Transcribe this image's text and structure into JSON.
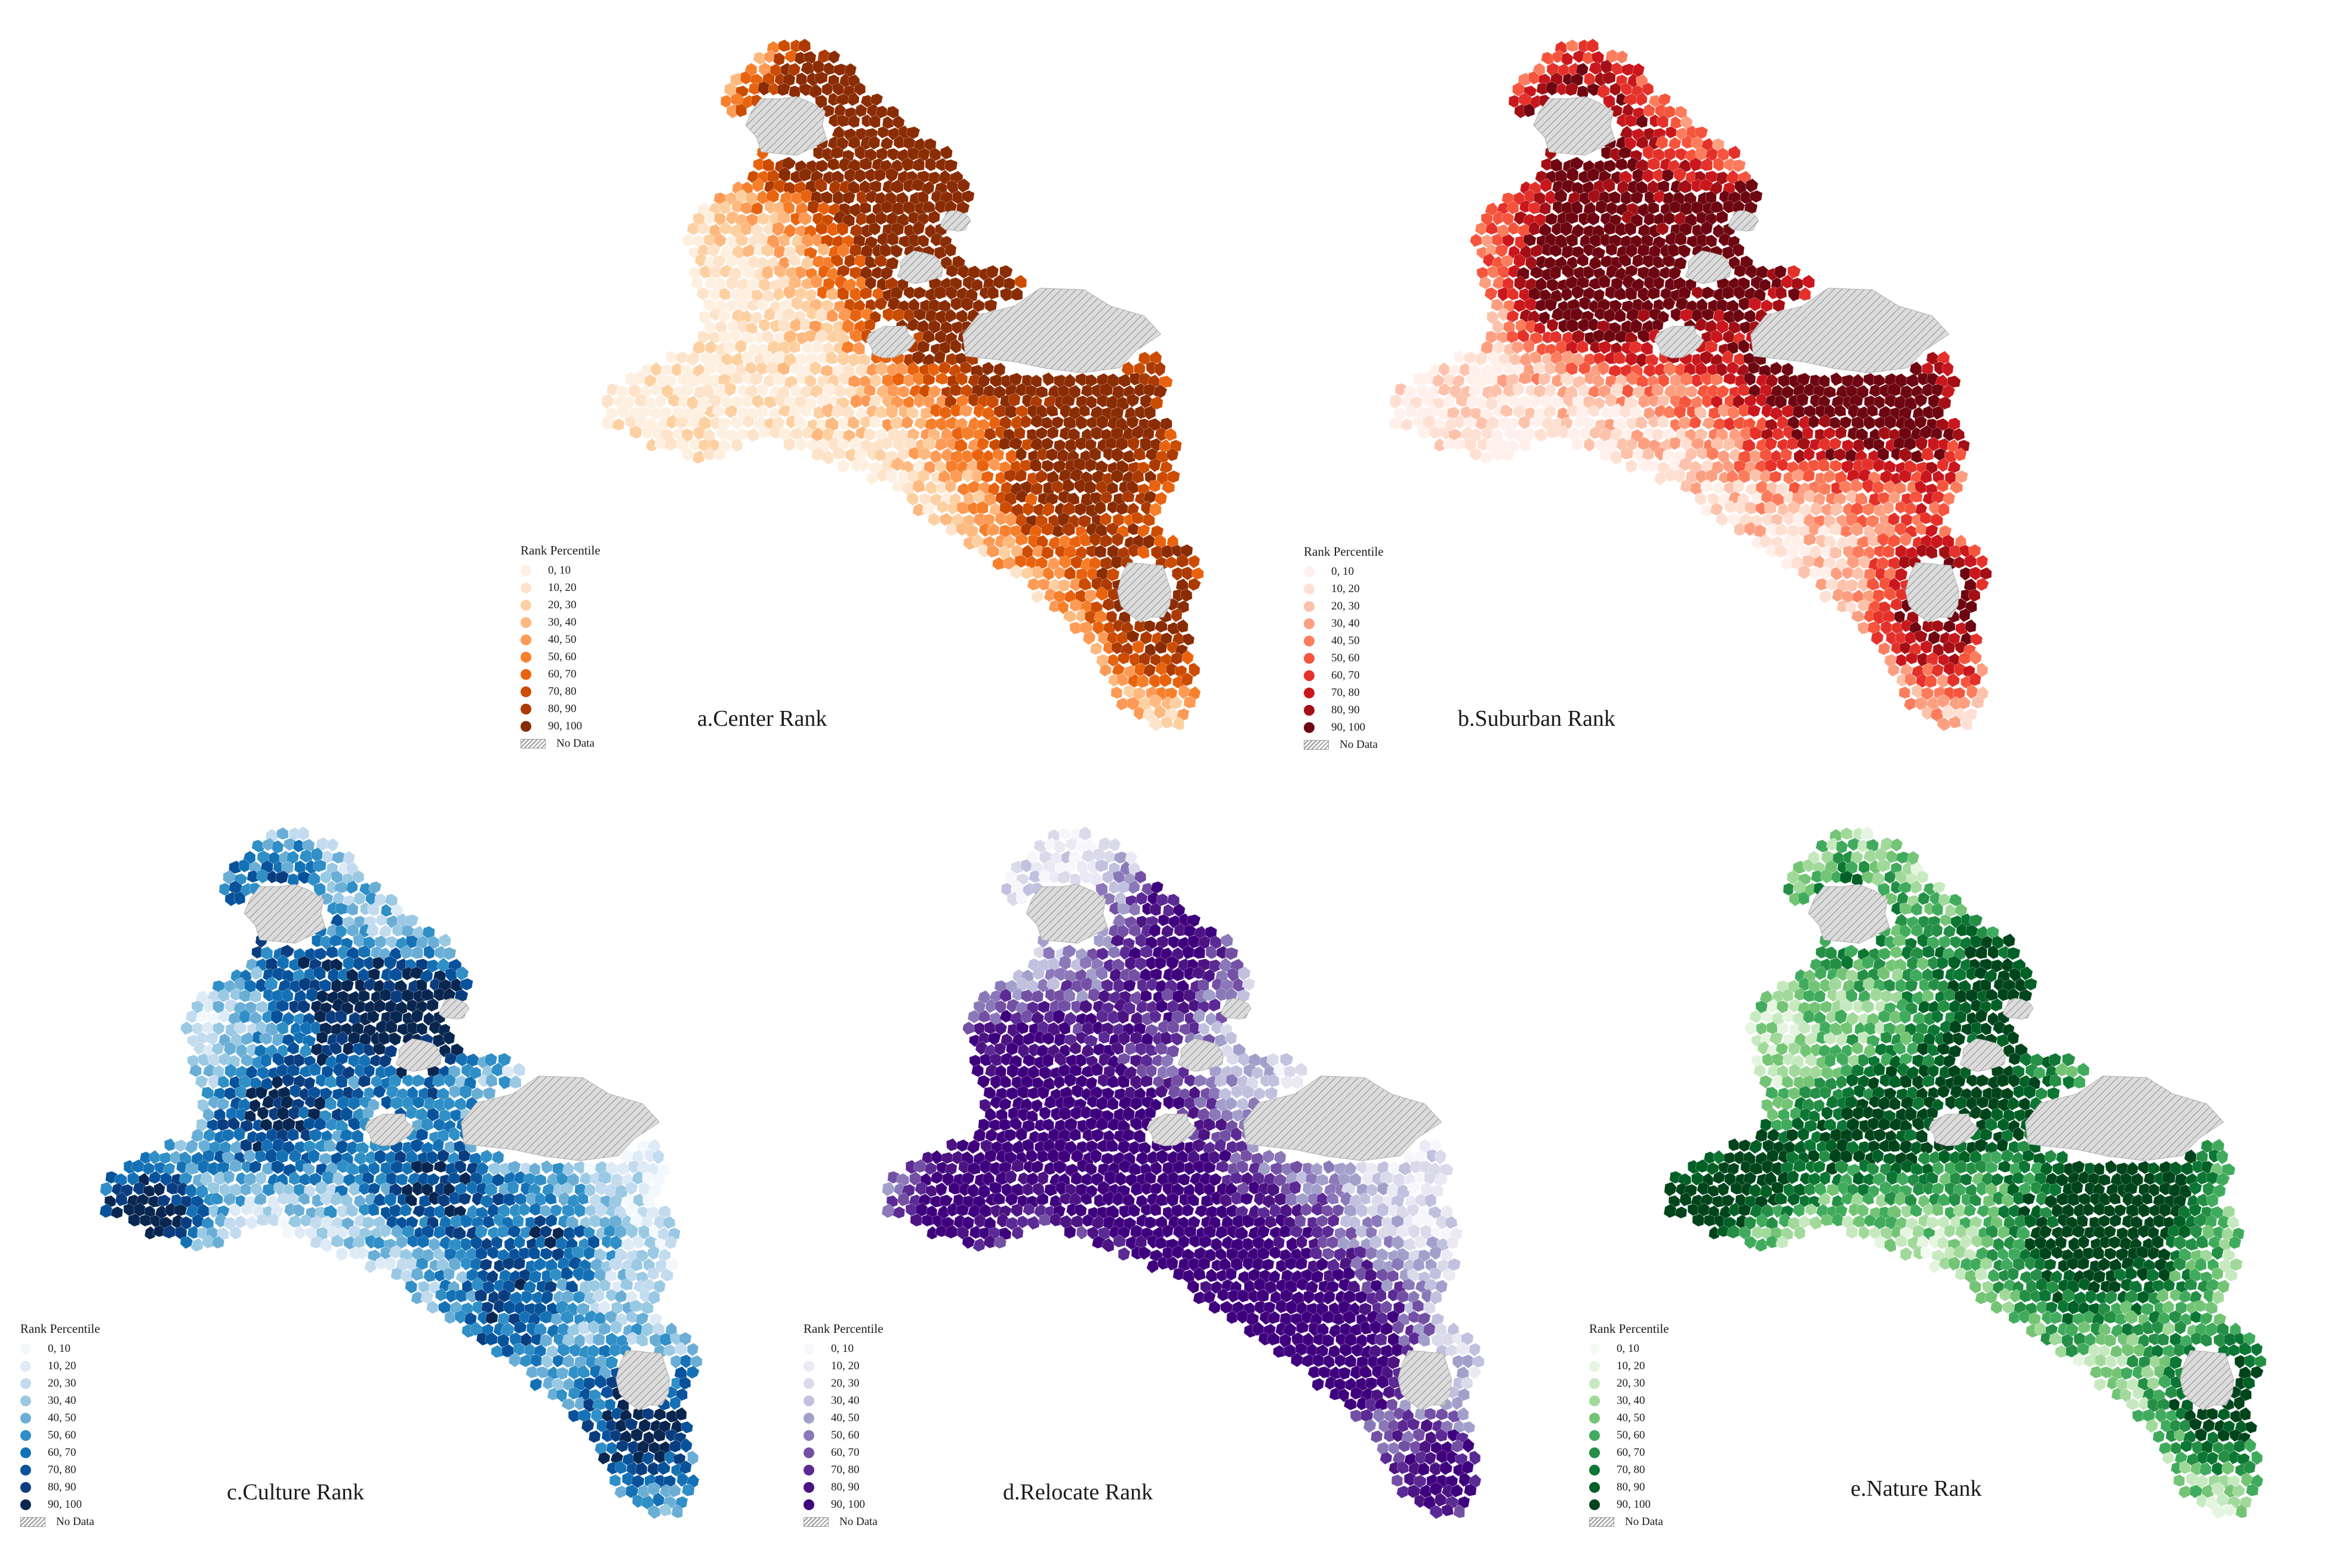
{
  "legend": {
    "title": "Rank Percentile",
    "classes": [
      "0,  10",
      "10,  20",
      "20,  30",
      "30,  40",
      "40,  50",
      "50,  60",
      "60,  70",
      "70,  80",
      "80,  90",
      "90, 100"
    ],
    "no_data": "No Data"
  },
  "nodata_color": "#d4d4d4",
  "panels": [
    {
      "id": "a",
      "caption": "a.Center Rank",
      "colors": [
        "#fef0e1",
        "#fde3c9",
        "#fdd0a2",
        "#fdb97f",
        "#fd9a55",
        "#f67f2c",
        "#e9630f",
        "#cc4c02",
        "#ac3a03",
        "#8a2c04"
      ]
    },
    {
      "id": "b",
      "caption": "b.Suburban Rank",
      "colors": [
        "#fff0eb",
        "#fee0d2",
        "#fcc2ab",
        "#fc9f81",
        "#fb7d5d",
        "#f5553d",
        "#e4322b",
        "#c9171d",
        "#a30f15",
        "#6d0610"
      ]
    },
    {
      "id": "c",
      "caption": "c.Culture Rank",
      "colors": [
        "#f3f8fd",
        "#deebf7",
        "#c3dbee",
        "#99c9e3",
        "#6aaed6",
        "#2f8fc6",
        "#1571b5",
        "#08529b",
        "#0a3d80",
        "#08264f"
      ]
    },
    {
      "id": "d",
      "caption": "d.Relocate Rank",
      "colors": [
        "#f7f6fb",
        "#ebe9f3",
        "#dadaeb",
        "#c1c0de",
        "#a39fcb",
        "#8a78b8",
        "#7350a4",
        "#5b2a94",
        "#4c1483",
        "#3f007d"
      ]
    },
    {
      "id": "e",
      "caption": "e.Nature Rank",
      "colors": [
        "#f4fbf2",
        "#e5f5e0",
        "#c7e9c0",
        "#a1d99b",
        "#74c476",
        "#41ab5d",
        "#248f45",
        "#0c7634",
        "#016026",
        "#00441b"
      ]
    }
  ]
}
